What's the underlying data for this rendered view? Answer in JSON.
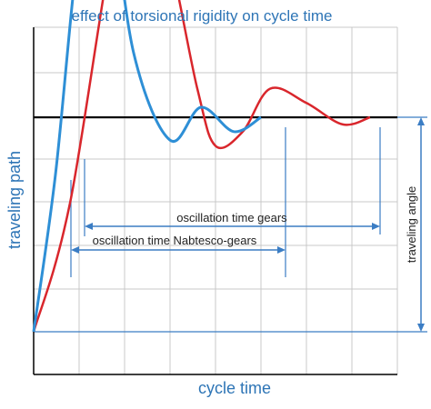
{
  "chart_data": {
    "type": "line",
    "title": "effect of torsional rigidity on cycle time",
    "xlabel": "cycle time",
    "ylabel": "traveling path",
    "right_label": "traveling angle",
    "grid": true,
    "ticks_labeled": false,
    "colors": {
      "blue_curve": "#2e8fd6",
      "red_curve": "#d9262c",
      "target_line": "#000000",
      "grid": "#c8c8c8",
      "arrows": "#3b7dc4",
      "text_accent": "#2e75b6"
    },
    "series": [
      {
        "key": "blue",
        "points": [
          [
            0,
            0
          ],
          [
            0.12,
            1.1
          ],
          [
            0.25,
            2.7
          ],
          [
            0.38,
            3.3
          ],
          [
            0.55,
            1.95
          ],
          [
            0.75,
            1.34
          ],
          [
            0.92,
            1.57
          ],
          [
            1.1,
            1.4
          ],
          [
            1.25,
            1.5
          ]
        ]
      },
      {
        "key": "red",
        "points": [
          [
            0,
            0
          ],
          [
            0.2,
            0.9
          ],
          [
            0.5,
            3.1
          ],
          [
            0.7,
            2.85
          ],
          [
            0.9,
            1.7
          ],
          [
            1.0,
            1.3
          ],
          [
            1.15,
            1.4
          ],
          [
            1.3,
            1.7
          ],
          [
            1.5,
            1.6
          ],
          [
            1.7,
            1.45
          ],
          [
            1.85,
            1.5
          ]
        ]
      }
    ],
    "target_level": 1.5,
    "annotations": {
      "gears": "oscillation time gears",
      "nabtesco": "oscillation time Nabtesco-gears"
    }
  }
}
